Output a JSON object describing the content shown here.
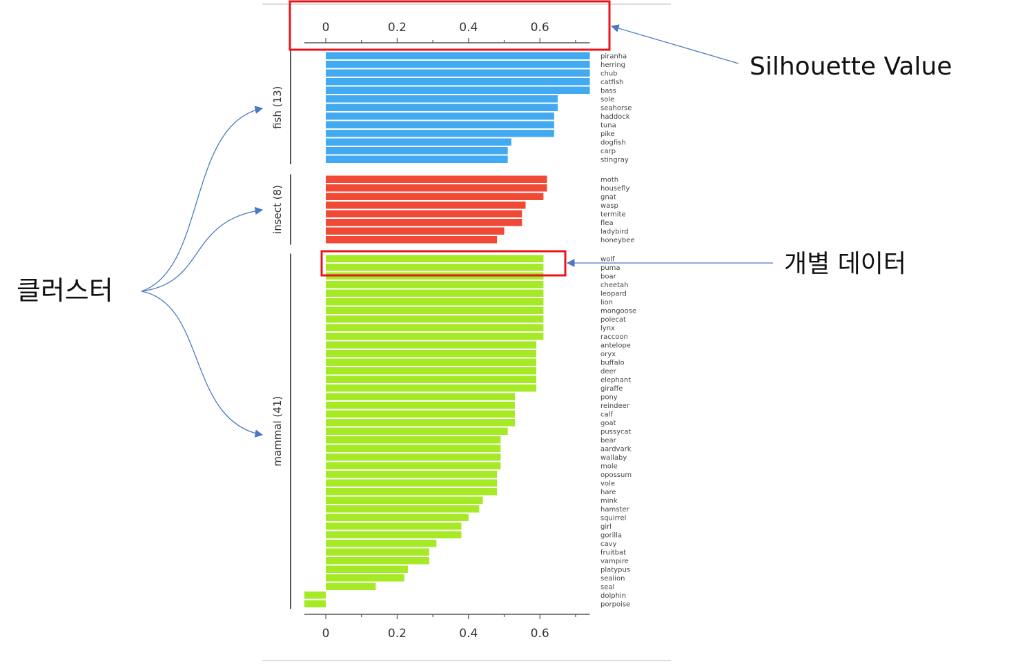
{
  "annotations": {
    "axis_callout": "Silhouette Value",
    "item_callout": "개별 데이터",
    "cluster_callout": "클러스터"
  },
  "colors": {
    "fish": "#42aaf0",
    "insect": "#f04a36",
    "mammal": "#a6ea26",
    "highlight": "#e8141c",
    "arrow": "#4a78c2"
  },
  "chart_data": {
    "type": "bar",
    "orientation": "horizontal",
    "x_ticks": [
      0,
      0.2,
      0.4,
      0.6
    ],
    "xlim": [
      -0.06,
      0.74
    ],
    "grid": false,
    "groups": [
      {
        "name": "fish (13)",
        "color": "#42aaf0",
        "labels": [
          "piranha",
          "herring",
          "chub",
          "catfish",
          "bass",
          "sole",
          "seahorse",
          "haddock",
          "tuna",
          "pike",
          "dogfish",
          "carp",
          "stingray"
        ],
        "values": [
          0.74,
          0.74,
          0.74,
          0.74,
          0.74,
          0.65,
          0.65,
          0.64,
          0.64,
          0.64,
          0.52,
          0.51,
          0.51
        ]
      },
      {
        "name": "insect (8)",
        "color": "#f04a36",
        "labels": [
          "moth",
          "housefly",
          "gnat",
          "wasp",
          "termite",
          "flea",
          "ladybird",
          "honeybee"
        ],
        "values": [
          0.62,
          0.62,
          0.61,
          0.56,
          0.55,
          0.55,
          0.5,
          0.48
        ]
      },
      {
        "name": "mammal (41)",
        "color": "#a6ea26",
        "labels": [
          "wolf",
          "puma",
          "boar",
          "cheetah",
          "leopard",
          "lion",
          "mongoose",
          "polecat",
          "lynx",
          "raccoon",
          "antelope",
          "oryx",
          "buffalo",
          "deer",
          "elephant",
          "giraffe",
          "pony",
          "reindeer",
          "calf",
          "goat",
          "pussycat",
          "bear",
          "aardvark",
          "wallaby",
          "mole",
          "opossum",
          "vole",
          "hare",
          "mink",
          "hamster",
          "squirrel",
          "girl",
          "gorilla",
          "cavy",
          "fruitbat",
          "vampire",
          "platypus",
          "sealion",
          "seal",
          "dolphin",
          "porpoise"
        ],
        "values": [
          0.61,
          0.61,
          0.61,
          0.61,
          0.61,
          0.61,
          0.61,
          0.61,
          0.61,
          0.61,
          0.59,
          0.59,
          0.59,
          0.59,
          0.59,
          0.59,
          0.53,
          0.53,
          0.53,
          0.53,
          0.51,
          0.49,
          0.49,
          0.49,
          0.49,
          0.48,
          0.48,
          0.48,
          0.44,
          0.43,
          0.4,
          0.38,
          0.38,
          0.31,
          0.29,
          0.29,
          0.23,
          0.22,
          0.14,
          -0.06,
          -0.06
        ]
      }
    ]
  }
}
